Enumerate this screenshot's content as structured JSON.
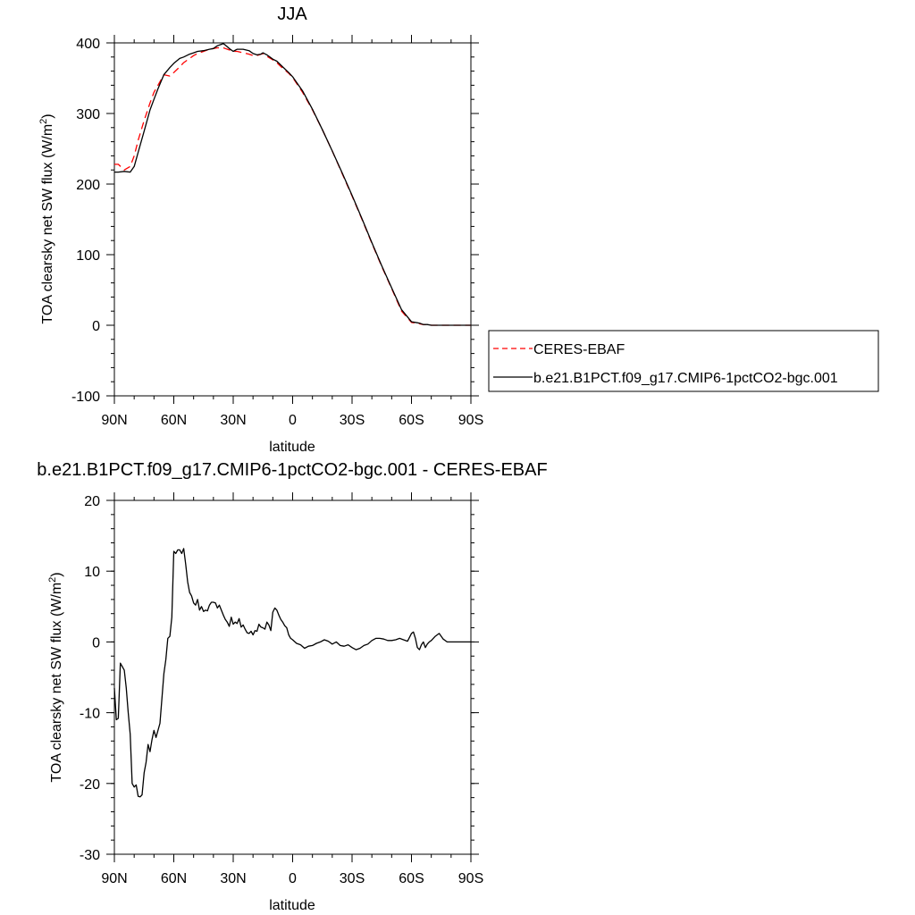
{
  "chart_data": [
    {
      "type": "line",
      "title": "JJA",
      "xlabel": "latitude",
      "ylabel": "TOA clearsky net SW flux (W/m",
      "ylabel_sup": "2",
      "ylabel_end": ")",
      "x_ticks": [
        "90N",
        "60N",
        "30N",
        "0",
        "30S",
        "60S",
        "90S"
      ],
      "y_ticks": [
        "400",
        "300",
        "200",
        "100",
        "0",
        "-100"
      ],
      "xlim": [
        90,
        -90
      ],
      "ylim": [
        -100,
        400
      ],
      "legend_placement": "right",
      "x": [
        90,
        88,
        85,
        82,
        80,
        78,
        75,
        72,
        70,
        68,
        65,
        62,
        60,
        57,
        55,
        52,
        50,
        48,
        45,
        42,
        40,
        38,
        36,
        35,
        34,
        32,
        30,
        28,
        25,
        22,
        20,
        18,
        16,
        15,
        13,
        10,
        8,
        5,
        2,
        0,
        -5,
        -10,
        -15,
        -20,
        -25,
        -30,
        -35,
        -40,
        -45,
        -50,
        -55,
        -60,
        -62,
        -64,
        -66,
        -68,
        -70,
        -72,
        -75,
        -78,
        -80,
        -85,
        -90
      ],
      "series": [
        {
          "name": "CERES-EBAF",
          "style": "dashed",
          "color": "#ff0000",
          "values": [
            228,
            228,
            220,
            225,
            240,
            262,
            290,
            315,
            330,
            340,
            355,
            353,
            358,
            366,
            372,
            378,
            382,
            385,
            388,
            391,
            392,
            393,
            393,
            393,
            392,
            390,
            388,
            388,
            386,
            384,
            382,
            382,
            384,
            385,
            381,
            376,
            372,
            364,
            357,
            351,
            330,
            305,
            277,
            247,
            215,
            183,
            150,
            116,
            83,
            52,
            20,
            4,
            3,
            2,
            1,
            1,
            0,
            0,
            0,
            0,
            0,
            0,
            0
          ]
        },
        {
          "name": "b.e21.B1PCT.f09_g17.CMIP6-1pctCO2-bgc.001",
          "style": "solid",
          "color": "#000000",
          "values": [
            217,
            217,
            218,
            217,
            225,
            245,
            275,
            305,
            320,
            335,
            355,
            365,
            371,
            378,
            380,
            384,
            386,
            388,
            389,
            391,
            392,
            396,
            398,
            399,
            397,
            392,
            388,
            391,
            391,
            389,
            385,
            383,
            384,
            386,
            383,
            377,
            374,
            366,
            358,
            352,
            332,
            306,
            277,
            247,
            216,
            184,
            151,
            117,
            84,
            53,
            22,
            5,
            4,
            3,
            1,
            1,
            0,
            0,
            0,
            0,
            0,
            0,
            0
          ]
        }
      ]
    },
    {
      "type": "line",
      "title": "b.e21.B1PCT.f09_g17.CMIP6-1pctCO2-bgc.001 - CERES-EBAF",
      "xlabel": "latitude",
      "ylabel": "TOA clearsky net SW flux (W/m",
      "ylabel_sup": "2",
      "ylabel_end": ")",
      "x_ticks": [
        "90N",
        "60N",
        "30N",
        "0",
        "30S",
        "60S",
        "90S"
      ],
      "y_ticks": [
        "20",
        "10",
        "0",
        "-10",
        "-20",
        "-30"
      ],
      "xlim": [
        90,
        -90
      ],
      "ylim": [
        -30,
        20
      ],
      "series": [
        {
          "name": "",
          "style": "solid",
          "color": "#000000",
          "x": [
            90,
            89,
            88,
            87,
            86,
            85,
            84,
            83,
            82,
            81,
            80,
            79,
            78,
            77,
            76,
            75,
            74,
            73,
            72,
            71,
            70,
            69,
            68,
            67,
            66,
            65,
            64,
            63,
            62,
            61,
            60,
            59,
            58,
            57,
            56,
            55,
            54,
            53,
            52,
            51,
            50,
            49,
            48,
            47,
            46,
            45,
            44,
            43,
            42,
            41,
            40,
            39,
            38,
            37,
            36,
            35,
            34,
            33,
            32,
            31,
            30,
            29,
            28,
            27,
            26,
            25,
            24,
            23,
            22,
            21,
            20,
            19,
            18,
            17,
            16,
            15,
            14,
            13,
            12,
            11,
            10,
            9,
            8,
            7,
            6,
            5,
            4,
            3,
            2,
            1,
            0,
            -2,
            -4,
            -6,
            -8,
            -10,
            -12,
            -14,
            -16,
            -18,
            -20,
            -22,
            -24,
            -26,
            -28,
            -30,
            -32,
            -34,
            -36,
            -38,
            -40,
            -42,
            -44,
            -46,
            -48,
            -50,
            -52,
            -54,
            -56,
            -58,
            -60,
            -61,
            -62,
            -63,
            -64,
            -65,
            -66,
            -67,
            -68,
            -69,
            -70,
            -72,
            -74,
            -76,
            -78,
            -80,
            -82,
            -84,
            -86,
            -88,
            -90
          ],
          "values": [
            -6.5,
            -11,
            -10.8,
            -3,
            -3.5,
            -4,
            -6.5,
            -10,
            -13,
            -20,
            -20.5,
            -20.2,
            -21.8,
            -21.9,
            -21.6,
            -18.5,
            -17,
            -14.5,
            -15.5,
            -13.8,
            -12.5,
            -13.5,
            -12.5,
            -11.5,
            -8,
            -4.5,
            -2.5,
            0.5,
            0.8,
            3.5,
            12.8,
            12.5,
            13,
            13,
            12.5,
            13.2,
            11,
            8.5,
            7,
            6.5,
            5.5,
            5.2,
            6,
            4.5,
            5,
            4.3,
            4.5,
            4.4,
            5.2,
            5.6,
            5.6,
            5.5,
            4.8,
            5.2,
            4.5,
            3.8,
            3.2,
            2.8,
            2.2,
            3.5,
            2.5,
            2.8,
            2.6,
            3.3,
            2.1,
            2.4,
            1.8,
            1.3,
            1.2,
            1.5,
            1,
            1.6,
            1.5,
            2.5,
            2.1,
            2,
            1.8,
            2.8,
            2.4,
            1.6,
            4.2,
            4.8,
            4.5,
            3.8,
            3.2,
            2.8,
            2.3,
            2,
            1,
            0.5,
            0.3,
            -0.2,
            -0.4,
            -0.9,
            -0.6,
            -0.5,
            -0.2,
            0,
            0.3,
            0.1,
            -0.3,
            0,
            -0.5,
            -0.6,
            -0.4,
            -0.8,
            -1.1,
            -0.9,
            -0.5,
            -0.3,
            0.2,
            0.5,
            0.5,
            0.4,
            0.2,
            0.2,
            0.3,
            0.5,
            0.3,
            0.1,
            1.2,
            1.4,
            0.5,
            -0.8,
            -1.1,
            -0.4,
            0,
            -0.8,
            -0.3,
            0,
            0.2,
            0.8,
            1.2,
            0.4,
            0,
            0,
            0,
            0,
            0,
            0,
            0
          ]
        }
      ]
    }
  ]
}
